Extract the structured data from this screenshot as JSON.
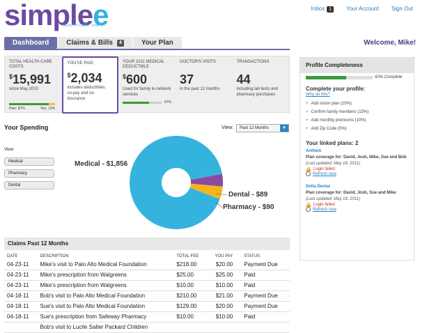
{
  "logo": {
    "text_a": "simple",
    "text_b": "e",
    "tagline": "HEALTH CARE. SIMPLY."
  },
  "top_links": {
    "inbox": "Inbox",
    "inbox_count": "1",
    "account": "Your Account",
    "signout": "Sign Out"
  },
  "tabs": [
    {
      "label": "Dashboard",
      "active": true
    },
    {
      "label": "Claims & Bills",
      "count": "4"
    },
    {
      "label": "Your Plan"
    }
  ],
  "welcome": "Welcome, Mike!",
  "stats": [
    {
      "label": "TOTAL HEALTH CARE COSTS",
      "symbol": "$",
      "value": "15,991",
      "desc": "since May 2010",
      "plan_label": "Plan: 87%",
      "you_label": "You: 13%",
      "plan_fraction": 0.87
    },
    {
      "label": "YOU'VE PAID",
      "symbol": "$",
      "value": "2,034",
      "desc": "includes deductibles, co-pay and co-insurance"
    },
    {
      "label": "YOUR 2011 MEDICAL DEDUCTIBLE",
      "symbol": "$",
      "value": "600",
      "desc": "Used for family in-network services",
      "pct_label": "67%",
      "fraction": 0.67
    },
    {
      "label": "DOCTOR'S VISITS",
      "value": "37",
      "desc": "in the past 12 months"
    },
    {
      "label": "TRANSACTIONS",
      "value": "44",
      "desc": "including lab tests and pharmacy purchases"
    }
  ],
  "spending": {
    "title": "Your Spending",
    "view_label": "View:",
    "view_buttons": [
      "Medical",
      "Pharmacy",
      "Dental"
    ],
    "range_label": "View:",
    "range_value": "Past 12 Months",
    "pie_labels": {
      "medical": "Medical - $1,856",
      "dental": "Dental - $89",
      "pharmacy": "Pharmacy - $90"
    }
  },
  "chart_data": {
    "type": "pie",
    "categories": [
      "Medical",
      "Dental",
      "Pharmacy"
    ],
    "values": [
      1856,
      89,
      90
    ],
    "colors": [
      "#35b3df",
      "#8a4aa0",
      "#f2b61c"
    ]
  },
  "claims": {
    "title": "Claims Past 12 Months",
    "columns": [
      "DATE",
      "DESCRIPTION",
      "TOTAL FEE",
      "YOU PAY",
      "STATUS"
    ],
    "rows": [
      [
        "04-23-11",
        "Mike's visit to Palo Alto Medical Foundation",
        "$218.00",
        "$20.00",
        "Payment Due"
      ],
      [
        "04-23-11",
        "Mike's prescription from Walgreens",
        "$25.00",
        "$25.00",
        "Paid"
      ],
      [
        "04-23-11",
        "Mike's prescription from Walgreens",
        "$10.00",
        "$10.00",
        "Paid"
      ],
      [
        "04-18-11",
        "Bob's visit to Palo Alto Medical Foundation",
        "$210.00",
        "$21.00",
        "Payment Due"
      ],
      [
        "04-18-11",
        "Sue's visit to Palo Alto Medical Foundation",
        "$129.00",
        "$20.00",
        "Payment Due"
      ],
      [
        "04-18-11",
        "Sue's prescription from Safeway Pharmacy",
        "$10.00",
        "$10.00",
        "Paid"
      ],
      [
        "",
        "Bob's visit to Lucile Salter Packard Children",
        "",
        "",
        ""
      ]
    ]
  },
  "profile": {
    "title": "Profile Completeness",
    "pct_label": "60% Complete",
    "fraction": 0.6,
    "complete_title": "Complete your profile:",
    "why": "Why do this?",
    "items": [
      "Add vision plan (10%)",
      "Confirm family members (15%)",
      "Add monthly premiums (10%)",
      "Add Zip Code (5%)"
    ],
    "linked_title": "Your linked plans: 2",
    "plans": [
      {
        "name": "Anthem",
        "coverage": "Plan coverage for: David, Josh, Mike, Sue and Bob",
        "updated": "(Last updated: May 18, 2011)",
        "status": "Login failed",
        "refresh": "Refresh now"
      },
      {
        "name": "Delta Dental",
        "coverage": "Plan coverage for: David, Josh, Sue and Mike",
        "updated": "(Last updated: May 18, 2011)",
        "status": "Login failed",
        "refresh": "Refresh now"
      }
    ]
  }
}
